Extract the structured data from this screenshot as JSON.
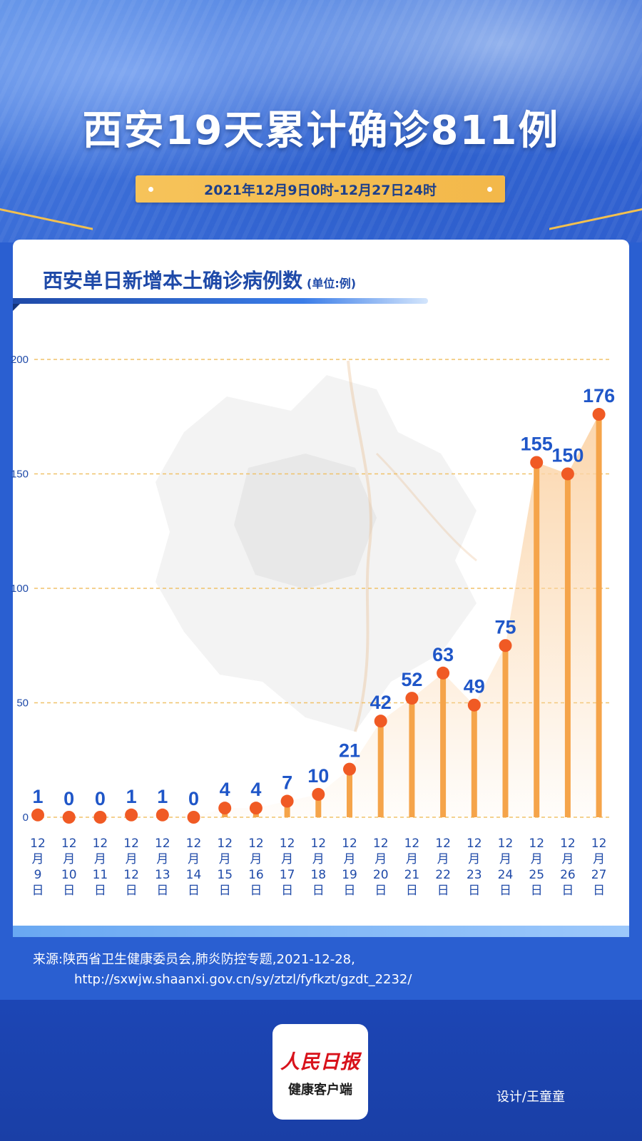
{
  "header": {
    "title": "西安19天累计确诊811例",
    "date_range": "2021年12月9日0时-12月27日24时"
  },
  "card": {
    "chart_title": "西安单日新增本土确诊病例数",
    "unit": "(单位:例)"
  },
  "chart_data": {
    "type": "bar",
    "title": "西安单日新增本土确诊病例数",
    "unit": "(单位:例)",
    "categories": [
      "12月9日",
      "12月10日",
      "12月11日",
      "12月12日",
      "12月13日",
      "12月14日",
      "12月15日",
      "12月16日",
      "12月17日",
      "12月18日",
      "12月19日",
      "12月20日",
      "12月21日",
      "12月22日",
      "12月23日",
      "12月24日",
      "12月25日",
      "12月26日",
      "12月27日"
    ],
    "category_lines": [
      [
        "12",
        "月",
        "9",
        "日"
      ],
      [
        "12",
        "月",
        "10",
        "日"
      ],
      [
        "12",
        "月",
        "11",
        "日"
      ],
      [
        "12",
        "月",
        "12",
        "日"
      ],
      [
        "12",
        "月",
        "13",
        "日"
      ],
      [
        "12",
        "月",
        "14",
        "日"
      ],
      [
        "12",
        "月",
        "15",
        "日"
      ],
      [
        "12",
        "月",
        "16",
        "日"
      ],
      [
        "12",
        "月",
        "17",
        "日"
      ],
      [
        "12",
        "月",
        "18",
        "日"
      ],
      [
        "12",
        "月",
        "19",
        "日"
      ],
      [
        "12",
        "月",
        "20",
        "日"
      ],
      [
        "12",
        "月",
        "21",
        "日"
      ],
      [
        "12",
        "月",
        "22",
        "日"
      ],
      [
        "12",
        "月",
        "23",
        "日"
      ],
      [
        "12",
        "月",
        "24",
        "日"
      ],
      [
        "12",
        "月",
        "25",
        "日"
      ],
      [
        "12",
        "月",
        "26",
        "日"
      ],
      [
        "12",
        "月",
        "27",
        "日"
      ]
    ],
    "values": [
      1,
      0,
      0,
      1,
      1,
      0,
      4,
      4,
      7,
      10,
      21,
      42,
      52,
      63,
      49,
      75,
      155,
      150,
      176
    ],
    "yticks": [
      0,
      50,
      100,
      150,
      200
    ],
    "ylim": [
      0,
      200
    ],
    "grid": true,
    "colors": {
      "bar": "#f5a44a",
      "dot": "#f05a24",
      "label": "#1f56c8",
      "grid": "#f0c26a",
      "area": "#fbd4a8",
      "tick": "#1f4aa8"
    }
  },
  "source": {
    "line1": "来源:陕西省卫生健康委员会,肺炎防控专题,2021-12-28,",
    "line2": "http://sxwjw.shaanxi.gov.cn/sy/ztzl/fyfkzt/gzdt_2232/"
  },
  "footer": {
    "logo_brand": "人民日报",
    "logo_sub": "健康客户端",
    "designer": "设计/王童童"
  }
}
